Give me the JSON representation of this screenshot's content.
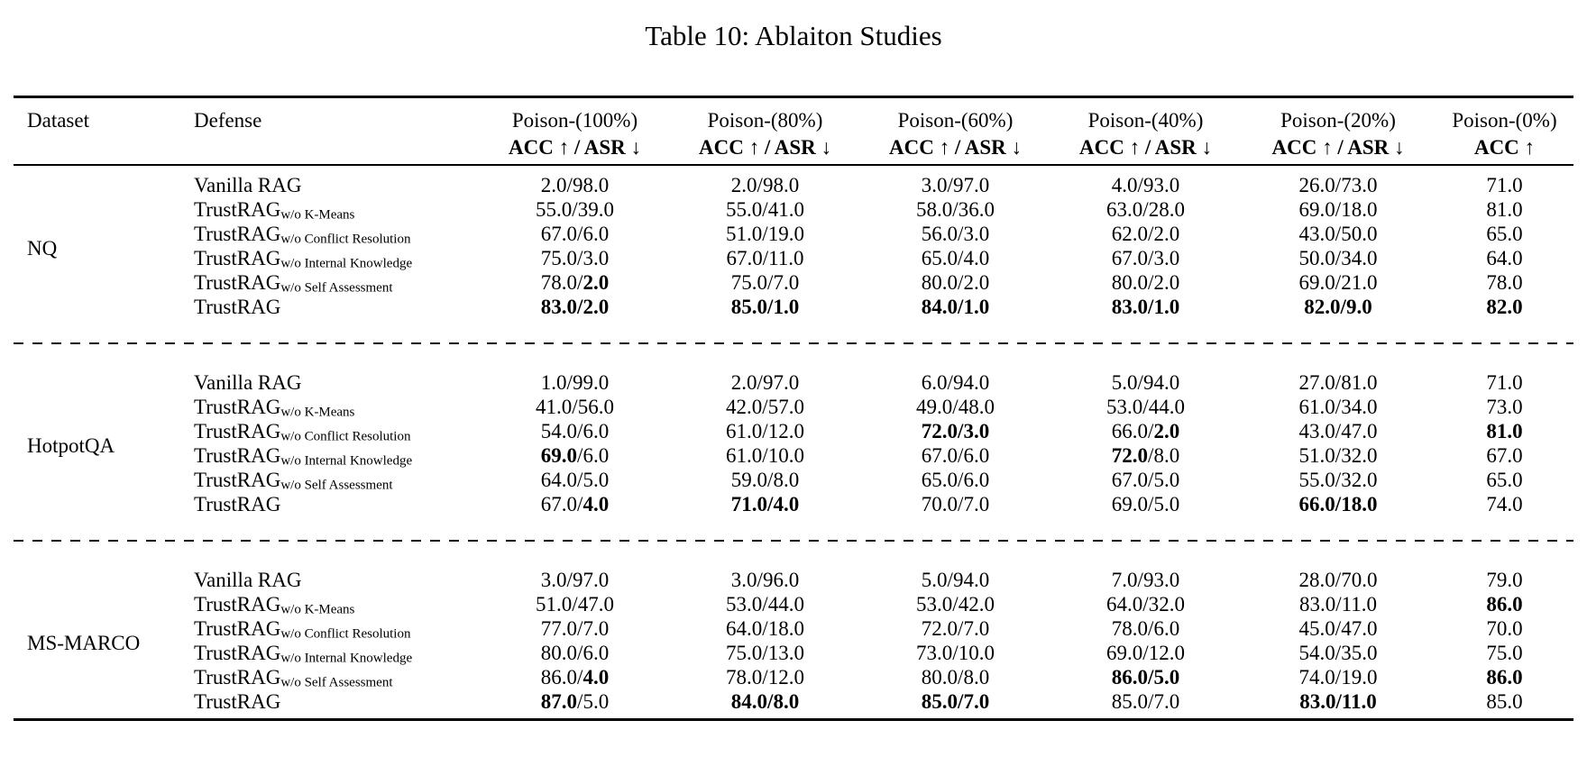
{
  "title": "Table 10: Ablaiton Studies",
  "header": {
    "dataset": "Dataset",
    "defense": "Defense",
    "cols": [
      {
        "top": "Poison-(100%)",
        "bottom": "ACC ↑ / ASR ↓"
      },
      {
        "top": "Poison-(80%)",
        "bottom": "ACC ↑ / ASR ↓"
      },
      {
        "top": "Poison-(60%)",
        "bottom": "ACC ↑ / ASR ↓"
      },
      {
        "top": "Poison-(40%)",
        "bottom": "ACC ↑ / ASR ↓"
      },
      {
        "top": "Poison-(20%)",
        "bottom": "ACC ↑ / ASR ↓"
      },
      {
        "top": "Poison-(0%)",
        "bottom": "ACC ↑"
      }
    ]
  },
  "groups": [
    {
      "dataset": "NQ",
      "rows": [
        {
          "defense": "Vanilla RAG",
          "sub": "",
          "cells": [
            [
              "2.0",
              "98.0",
              0,
              0
            ],
            [
              "2.0",
              "98.0",
              0,
              0
            ],
            [
              "3.0",
              "97.0",
              0,
              0
            ],
            [
              "4.0",
              "93.0",
              0,
              0
            ],
            [
              "26.0",
              "73.0",
              0,
              0
            ],
            [
              "71.0",
              "",
              0,
              0
            ]
          ]
        },
        {
          "defense": "TrustRAG",
          "sub": "w/o K-Means",
          "cells": [
            [
              "55.0",
              "39.0",
              0,
              0
            ],
            [
              "55.0",
              "41.0",
              0,
              0
            ],
            [
              "58.0",
              "36.0",
              0,
              0
            ],
            [
              "63.0",
              "28.0",
              0,
              0
            ],
            [
              "69.0",
              "18.0",
              0,
              0
            ],
            [
              "81.0",
              "",
              0,
              0
            ]
          ]
        },
        {
          "defense": "TrustRAG",
          "sub": "w/o Conflict Resolution",
          "cells": [
            [
              "67.0",
              "6.0",
              0,
              0
            ],
            [
              "51.0",
              "19.0",
              0,
              0
            ],
            [
              "56.0",
              "3.0",
              0,
              0
            ],
            [
              "62.0",
              "2.0",
              0,
              0
            ],
            [
              "43.0",
              "50.0",
              0,
              0
            ],
            [
              "65.0",
              "",
              0,
              0
            ]
          ]
        },
        {
          "defense": "TrustRAG",
          "sub": "w/o Internal Knowledge",
          "cells": [
            [
              "75.0",
              "3.0",
              0,
              0
            ],
            [
              "67.0",
              "11.0",
              0,
              0
            ],
            [
              "65.0",
              "4.0",
              0,
              0
            ],
            [
              "67.0",
              "3.0",
              0,
              0
            ],
            [
              "50.0",
              "34.0",
              0,
              0
            ],
            [
              "64.0",
              "",
              0,
              0
            ]
          ]
        },
        {
          "defense": "TrustRAG",
          "sub": "w/o Self Assessment",
          "cells": [
            [
              "78.0",
              "2.0",
              0,
              1
            ],
            [
              "75.0",
              "7.0",
              0,
              0
            ],
            [
              "80.0",
              "2.0",
              0,
              0
            ],
            [
              "80.0",
              "2.0",
              0,
              0
            ],
            [
              "69.0",
              "21.0",
              0,
              0
            ],
            [
              "78.0",
              "",
              0,
              0
            ]
          ]
        },
        {
          "defense": "TrustRAG",
          "sub": "",
          "cells": [
            [
              "83.0",
              "2.0",
              1,
              1
            ],
            [
              "85.0",
              "1.0",
              1,
              1
            ],
            [
              "84.0",
              "1.0",
              1,
              1
            ],
            [
              "83.0",
              "1.0",
              1,
              1
            ],
            [
              "82.0",
              "9.0",
              1,
              1
            ],
            [
              "82.0",
              "",
              1,
              0
            ]
          ]
        }
      ]
    },
    {
      "dataset": "HotpotQA",
      "rows": [
        {
          "defense": "Vanilla RAG",
          "sub": "",
          "cells": [
            [
              "1.0",
              "99.0",
              0,
              0
            ],
            [
              "2.0",
              "97.0",
              0,
              0
            ],
            [
              "6.0",
              "94.0",
              0,
              0
            ],
            [
              "5.0",
              "94.0",
              0,
              0
            ],
            [
              "27.0",
              "81.0",
              0,
              0
            ],
            [
              "71.0",
              "",
              0,
              0
            ]
          ]
        },
        {
          "defense": "TrustRAG",
          "sub": "w/o K-Means",
          "cells": [
            [
              "41.0",
              "56.0",
              0,
              0
            ],
            [
              "42.0",
              "57.0",
              0,
              0
            ],
            [
              "49.0",
              "48.0",
              0,
              0
            ],
            [
              "53.0",
              "44.0",
              0,
              0
            ],
            [
              "61.0",
              "34.0",
              0,
              0
            ],
            [
              "73.0",
              "",
              0,
              0
            ]
          ]
        },
        {
          "defense": "TrustRAG",
          "sub": "w/o Conflict Resolution",
          "cells": [
            [
              "54.0",
              "6.0",
              0,
              0
            ],
            [
              "61.0",
              "12.0",
              0,
              0
            ],
            [
              "72.0",
              "3.0",
              1,
              1
            ],
            [
              "66.0",
              "2.0",
              0,
              1
            ],
            [
              "43.0",
              "47.0",
              0,
              0
            ],
            [
              "81.0",
              "",
              1,
              0
            ]
          ]
        },
        {
          "defense": "TrustRAG",
          "sub": "w/o Internal Knowledge",
          "cells": [
            [
              "69.0",
              "6.0",
              1,
              0
            ],
            [
              "61.0",
              "10.0",
              0,
              0
            ],
            [
              "67.0",
              "6.0",
              0,
              0
            ],
            [
              "72.0",
              "8.0",
              1,
              0
            ],
            [
              "51.0",
              "32.0",
              0,
              0
            ],
            [
              "67.0",
              "",
              0,
              0
            ]
          ]
        },
        {
          "defense": "TrustRAG",
          "sub": "w/o Self Assessment",
          "cells": [
            [
              "64.0",
              "5.0",
              0,
              0
            ],
            [
              "59.0",
              "8.0",
              0,
              0
            ],
            [
              "65.0",
              "6.0",
              0,
              0
            ],
            [
              "67.0",
              "5.0",
              0,
              0
            ],
            [
              "55.0",
              "32.0",
              0,
              0
            ],
            [
              "65.0",
              "",
              0,
              0
            ]
          ]
        },
        {
          "defense": "TrustRAG",
          "sub": "",
          "cells": [
            [
              "67.0",
              "4.0",
              0,
              1
            ],
            [
              "71.0",
              "4.0",
              1,
              1
            ],
            [
              "70.0",
              "7.0",
              0,
              0
            ],
            [
              "69.0",
              "5.0",
              0,
              0
            ],
            [
              "66.0",
              "18.0",
              1,
              1
            ],
            [
              "74.0",
              "",
              0,
              0
            ]
          ]
        }
      ]
    },
    {
      "dataset": "MS-MARCO",
      "rows": [
        {
          "defense": "Vanilla RAG",
          "sub": "",
          "cells": [
            [
              "3.0",
              "97.0",
              0,
              0
            ],
            [
              "3.0",
              "96.0",
              0,
              0
            ],
            [
              "5.0",
              "94.0",
              0,
              0
            ],
            [
              "7.0",
              "93.0",
              0,
              0
            ],
            [
              "28.0",
              "70.0",
              0,
              0
            ],
            [
              "79.0",
              "",
              0,
              0
            ]
          ]
        },
        {
          "defense": "TrustRAG",
          "sub": "w/o K-Means",
          "cells": [
            [
              "51.0",
              "47.0",
              0,
              0
            ],
            [
              "53.0",
              "44.0",
              0,
              0
            ],
            [
              "53.0",
              "42.0",
              0,
              0
            ],
            [
              "64.0",
              "32.0",
              0,
              0
            ],
            [
              "83.0",
              "11.0",
              0,
              0
            ],
            [
              "86.0",
              "",
              1,
              0
            ]
          ]
        },
        {
          "defense": "TrustRAG",
          "sub": "w/o Conflict Resolution",
          "cells": [
            [
              "77.0",
              "7.0",
              0,
              0
            ],
            [
              "64.0",
              "18.0",
              0,
              0
            ],
            [
              "72.0",
              "7.0",
              0,
              0
            ],
            [
              "78.0",
              "6.0",
              0,
              0
            ],
            [
              "45.0",
              "47.0",
              0,
              0
            ],
            [
              "70.0",
              "",
              0,
              0
            ]
          ]
        },
        {
          "defense": "TrustRAG",
          "sub": "w/o Internal Knowledge",
          "cells": [
            [
              "80.0",
              "6.0",
              0,
              0
            ],
            [
              "75.0",
              "13.0",
              0,
              0
            ],
            [
              "73.0",
              "10.0",
              0,
              0
            ],
            [
              "69.0",
              "12.0",
              0,
              0
            ],
            [
              "54.0",
              "35.0",
              0,
              0
            ],
            [
              "75.0",
              "",
              0,
              0
            ]
          ]
        },
        {
          "defense": "TrustRAG",
          "sub": "w/o Self Assessment",
          "cells": [
            [
              "86.0",
              "4.0",
              0,
              1
            ],
            [
              "78.0",
              "12.0",
              0,
              0
            ],
            [
              "80.0",
              "8.0",
              0,
              0
            ],
            [
              "86.0",
              "5.0",
              1,
              1
            ],
            [
              "74.0",
              "19.0",
              0,
              0
            ],
            [
              "86.0",
              "",
              1,
              0
            ]
          ]
        },
        {
          "defense": "TrustRAG",
          "sub": "",
          "cells": [
            [
              "87.0",
              "5.0",
              1,
              0
            ],
            [
              "84.0",
              "8.0",
              1,
              1
            ],
            [
              "85.0",
              "7.0",
              1,
              1
            ],
            [
              "85.0",
              "7.0",
              0,
              0
            ],
            [
              "83.0",
              "11.0",
              1,
              1
            ],
            [
              "85.0",
              "",
              0,
              0
            ]
          ]
        }
      ]
    }
  ]
}
